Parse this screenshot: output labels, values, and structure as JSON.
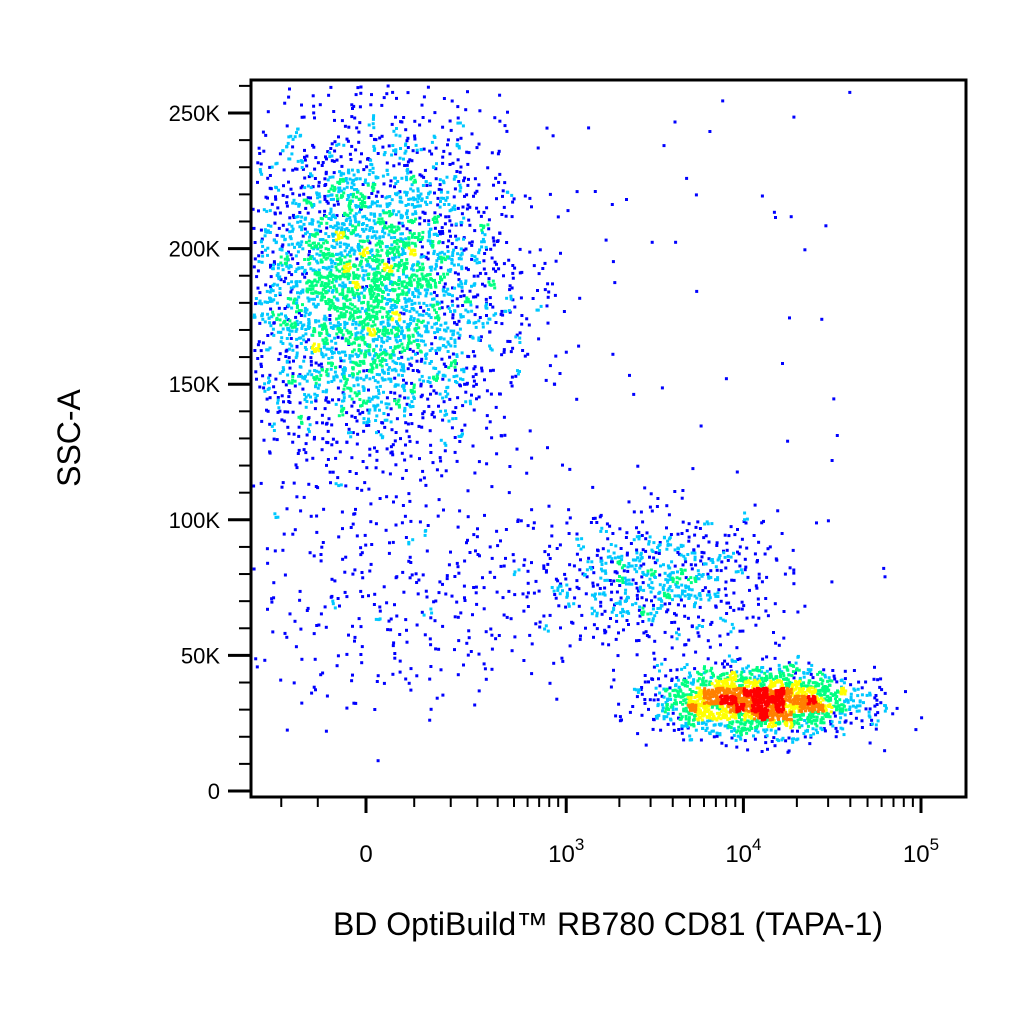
{
  "chart_data": {
    "type": "scatter",
    "style": "density-dot-plot",
    "xlabel": "BD OptiBuild™ RB780 CD81 (TAPA-1)",
    "ylabel": "SSC-A",
    "x_scale": "biexponential",
    "y_scale": "linear",
    "ylim": [
      0,
      262144
    ],
    "yticks": [
      {
        "value": 0,
        "label": "0"
      },
      {
        "value": 50000,
        "label": "50K"
      },
      {
        "value": 100000,
        "label": "100K"
      },
      {
        "value": 150000,
        "label": "150K"
      },
      {
        "value": 200000,
        "label": "200K"
      },
      {
        "value": 250000,
        "label": "250K"
      }
    ],
    "xticks": [
      {
        "value": 0,
        "base": "0",
        "exp": ""
      },
      {
        "value": 1000,
        "base": "10",
        "exp": "3"
      },
      {
        "value": 10000,
        "base": "10",
        "exp": "4"
      },
      {
        "value": 100000,
        "base": "10",
        "exp": "5"
      }
    ],
    "grid": false,
    "legend": "none",
    "density_colors": [
      "#0000ff",
      "#00c8ff",
      "#00ff80",
      "#ffff00",
      "#ff8000",
      "#ff0000"
    ],
    "populations": [
      {
        "center_x": 0,
        "center_y": 185000,
        "spread_x_log": 0.35,
        "spread_y": 30000,
        "relative_size": 0.55
      },
      {
        "center_x": 12000,
        "center_y": 33000,
        "spread_x_log": 0.28,
        "spread_y": 6000,
        "relative_size": 0.3
      },
      {
        "center_x": 3500,
        "center_y": 78000,
        "spread_x_log": 0.35,
        "spread_y": 12000,
        "relative_size": 0.1
      },
      {
        "center_x": 100,
        "center_y": 70000,
        "spread_x_log": 0.6,
        "spread_y": 20000,
        "relative_size": 0.05
      }
    ]
  }
}
